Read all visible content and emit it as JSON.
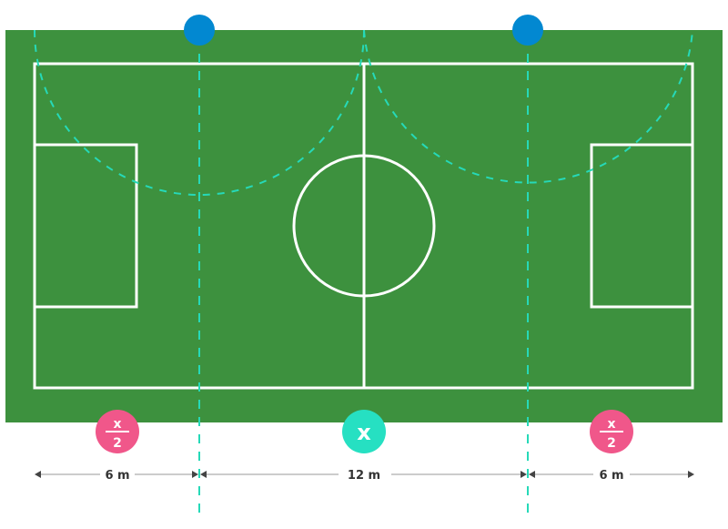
{
  "colors": {
    "field": "#3d913e",
    "lines": "#ffffff",
    "light": "#0288d1",
    "light_glow": "#e8e545",
    "dashed_lines": "#26d9b8",
    "badge_half": "#f0578a",
    "badge_full": "#26e0c2",
    "dimension": "#999999"
  },
  "lights": [
    {
      "icon": "floodlight-icon"
    },
    {
      "icon": "floodlight-icon"
    }
  ],
  "badges": {
    "left": {
      "numerator": "x",
      "denominator": "2"
    },
    "center": {
      "label": "x"
    },
    "right": {
      "numerator": "x",
      "denominator": "2"
    }
  },
  "dimensions": {
    "left": "6 m",
    "center": "12 m",
    "right": "6 m"
  }
}
